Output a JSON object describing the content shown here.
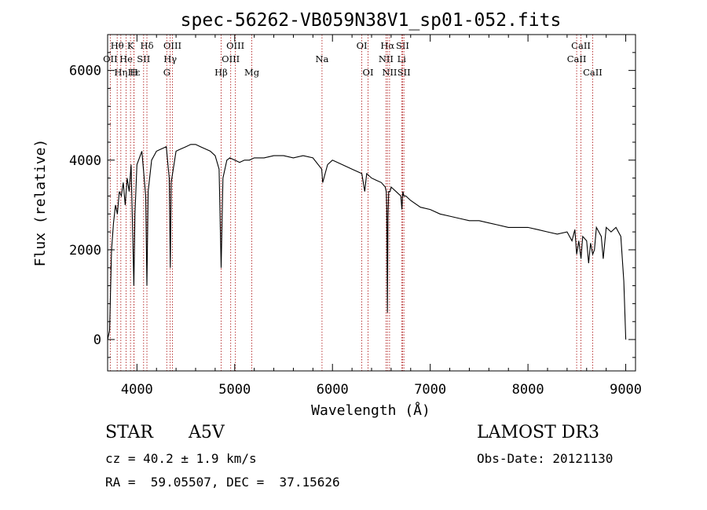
{
  "chart_data": {
    "type": "line",
    "title": "spec-56262-VB059N38V1_sp01-052.fits",
    "xlabel": "Wavelength (Å)",
    "ylabel": "Flux (relative)",
    "xlim": [
      3700,
      9100
    ],
    "ylim": [
      -700,
      6800
    ],
    "xticks": [
      4000,
      5000,
      6000,
      7000,
      8000,
      9000
    ],
    "yticks": [
      0,
      2000,
      4000,
      6000
    ],
    "series": [
      {
        "name": "flux",
        "x": [
          3700,
          3720,
          3740,
          3760,
          3780,
          3800,
          3820,
          3840,
          3860,
          3880,
          3900,
          3920,
          3940,
          3960,
          3968,
          3980,
          4000,
          4050,
          4090,
          4102,
          4115,
          4150,
          4200,
          4250,
          4300,
          4330,
          4341,
          4350,
          4400,
          4450,
          4500,
          4550,
          4600,
          4650,
          4700,
          4750,
          4800,
          4840,
          4861,
          4880,
          4920,
          4950,
          5000,
          5050,
          5100,
          5150,
          5200,
          5300,
          5400,
          5500,
          5600,
          5700,
          5800,
          5890,
          5900,
          5950,
          6000,
          6100,
          6200,
          6300,
          6330,
          6350,
          6400,
          6450,
          6500,
          6540,
          6550,
          6556,
          6562,
          6568,
          6575,
          6590,
          6600,
          6650,
          6700,
          6710,
          6720,
          6730,
          6750,
          6800,
          6900,
          7000,
          7100,
          7200,
          7300,
          7400,
          7500,
          7600,
          7700,
          7800,
          7900,
          8000,
          8100,
          8200,
          8300,
          8400,
          8450,
          8480,
          8498,
          8520,
          8542,
          8560,
          8600,
          8620,
          8640,
          8662,
          8680,
          8700,
          8750,
          8770,
          8800,
          8850,
          8900,
          8950,
          8980,
          9000
        ],
        "values": [
          0,
          200,
          2000,
          2600,
          3000,
          2800,
          3300,
          3200,
          3500,
          3000,
          3600,
          3300,
          3900,
          2000,
          1200,
          2800,
          3900,
          4200,
          3200,
          1200,
          3300,
          4000,
          4200,
          4250,
          4300,
          3600,
          1600,
          3500,
          4200,
          4250,
          4300,
          4350,
          4350,
          4300,
          4250,
          4200,
          4100,
          3800,
          1600,
          3600,
          4000,
          4050,
          4000,
          3950,
          4000,
          4000,
          4050,
          4050,
          4100,
          4100,
          4050,
          4100,
          4050,
          3800,
          3500,
          3900,
          4000,
          3900,
          3800,
          3700,
          3300,
          3700,
          3600,
          3550,
          3500,
          3400,
          3300,
          2900,
          600,
          2700,
          3300,
          3300,
          3400,
          3300,
          3200,
          2900,
          3300,
          3200,
          3200,
          3100,
          2950,
          2900,
          2800,
          2750,
          2700,
          2650,
          2650,
          2600,
          2550,
          2500,
          2500,
          2500,
          2450,
          2400,
          2350,
          2400,
          2200,
          2450,
          1900,
          2200,
          1800,
          2300,
          2200,
          1700,
          2150,
          1900,
          2000,
          2500,
          2300,
          1800,
          2500,
          2400,
          2500,
          2300,
          1300,
          0
        ]
      }
    ],
    "line_markers": [
      {
        "label": "Hθ",
        "wl": 3798,
        "row": 1
      },
      {
        "label": "OII",
        "wl": 3727,
        "row": 2
      },
      {
        "label": "He",
        "wl": 3889,
        "row": 2
      },
      {
        "label": "Hη",
        "wl": 3835,
        "row": 3
      },
      {
        "label": "Hε",
        "wl": 3970,
        "row": 3
      },
      {
        "label": "K",
        "wl": 3934,
        "row": 1
      },
      {
        "label": "SII",
        "wl": 4068,
        "row": 2
      },
      {
        "label": "H",
        "wl": 3969,
        "row": 3
      },
      {
        "label": "Hδ",
        "wl": 4102,
        "row": 1
      },
      {
        "label": "OIII",
        "wl": 4363,
        "row": 1
      },
      {
        "label": "Hγ",
        "wl": 4340,
        "row": 2
      },
      {
        "label": "G",
        "wl": 4305,
        "row": 3
      },
      {
        "label": "Hβ",
        "wl": 4861,
        "row": 3
      },
      {
        "label": "OIII",
        "wl": 5007,
        "row": 1
      },
      {
        "label": "OIII",
        "wl": 4959,
        "row": 2
      },
      {
        "label": "Mg",
        "wl": 5175,
        "row": 3
      },
      {
        "label": "Na",
        "wl": 5893,
        "row": 2
      },
      {
        "label": "OI",
        "wl": 6300,
        "row": 1
      },
      {
        "label": "OI",
        "wl": 6364,
        "row": 3
      },
      {
        "label": "Hα",
        "wl": 6563,
        "row": 1
      },
      {
        "label": "NII",
        "wl": 6548,
        "row": 2
      },
      {
        "label": "NII",
        "wl": 6584,
        "row": 3
      },
      {
        "label": "SII",
        "wl": 6717,
        "row": 1
      },
      {
        "label": "Li",
        "wl": 6708,
        "row": 2
      },
      {
        "label": "SII",
        "wl": 6731,
        "row": 3
      },
      {
        "label": "CaII",
        "wl": 8542,
        "row": 1
      },
      {
        "label": "CaII",
        "wl": 8498,
        "row": 2
      },
      {
        "label": "CaII",
        "wl": 8662,
        "row": 3
      }
    ]
  },
  "info": {
    "object_class": "STAR",
    "subclass": "A5V",
    "survey": "LAMOST DR3",
    "cz": "cz = 40.2 ± 1.9 km/s",
    "obs_date": "Obs-Date: 20121130",
    "coords": "RA =  59.05507, DEC =  37.15626"
  },
  "colors": {
    "spectrum": "#000000",
    "marker": "#b22222",
    "axis": "#000000"
  }
}
